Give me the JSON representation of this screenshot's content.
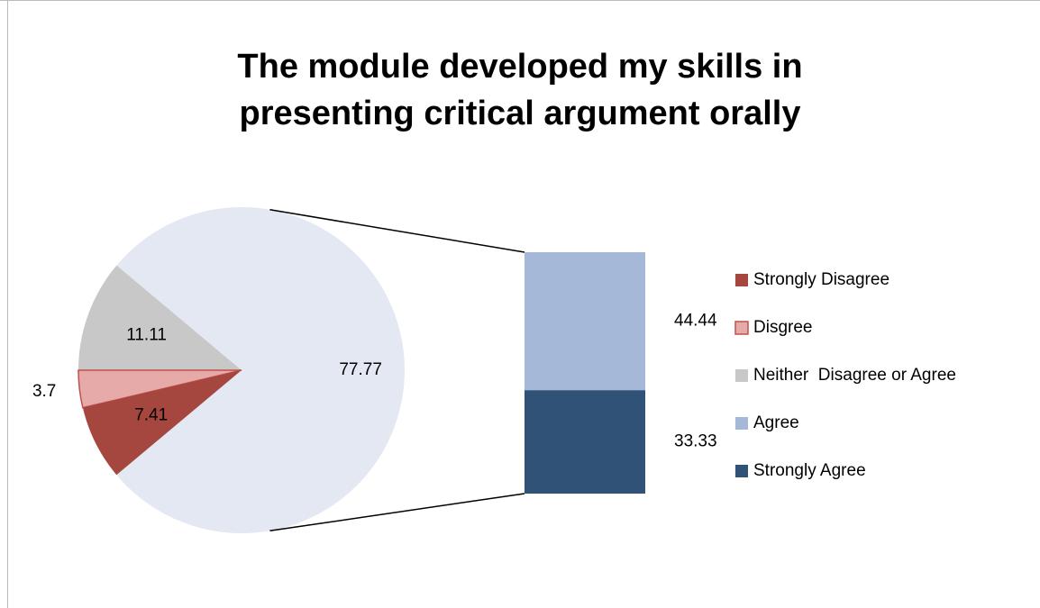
{
  "chart_data": {
    "type": "bar-of-pie",
    "title": "The module developed my skills in presenting critical argument orally",
    "categories": [
      "Strongly Disagree",
      "Disgree",
      "Neither  Disagree or Agree",
      "Agree",
      "Strongly Agree"
    ],
    "values": [
      7.41,
      3.7,
      11.11,
      44.44,
      33.33
    ],
    "colors": [
      "#a5473f",
      "#e6aaa8",
      "#c8c8c8",
      "#a5b8d7",
      "#2f5276"
    ],
    "second_plot_count": 2,
    "other_value": 77.77,
    "other_color": "#e3e8f2",
    "legend": "right"
  }
}
